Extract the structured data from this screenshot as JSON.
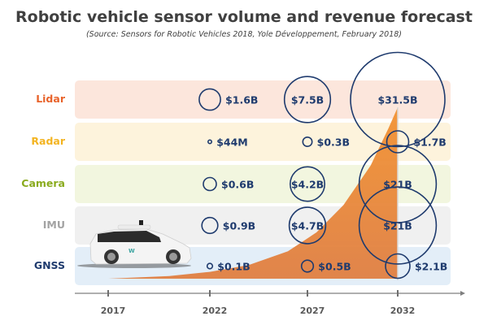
{
  "header": {
    "title": "Robotic vehicle sensor volume and revenue forecast",
    "subtitle": "(Source: Sensors for Robotic Vehicles 2018, Yole Développement, February 2018)"
  },
  "chart_data": {
    "type": "bubble-timeline",
    "title": "Robotic vehicle sensor volume and revenue forecast",
    "subtitle": "(Source: Sensors for Robotic Vehicles 2018, Yole Développement, February 2018)",
    "x_ticks": [
      "2017",
      "2022",
      "2027",
      "2032"
    ],
    "x_values": [
      2017,
      2022,
      2027,
      2032
    ],
    "xlim": [
      2015.6,
      2036.5
    ],
    "categories": [
      "Lidar",
      "Radar",
      "Camera",
      "IMU",
      "GNSS"
    ],
    "category_colors": {
      "Lidar": "#e8632b",
      "Radar": "#f3b421",
      "Camera": "#8aab1e",
      "IMU": "#a3a3a3",
      "GNSS": "#1f3b6e"
    },
    "row_backgrounds": {
      "Lidar": "#fce6dc",
      "Radar": "#fdf3dc",
      "Camera": "#f2f6df",
      "IMU": "#f0f0f0",
      "GNSS": "#e3eef8"
    },
    "series": [
      {
        "name": "Lidar",
        "values_busd": [
          1.6,
          7.5,
          31.5
        ],
        "labels": [
          "$1.6B",
          "$7.5B",
          "$31.5B"
        ],
        "years": [
          2022,
          2027,
          2032
        ]
      },
      {
        "name": "Radar",
        "values_busd": [
          0.044,
          0.3,
          1.7
        ],
        "labels": [
          "$44M",
          "$0.3B",
          "$1.7B"
        ],
        "years": [
          2022,
          2027,
          2032
        ]
      },
      {
        "name": "Camera",
        "values_busd": [
          0.6,
          4.2,
          21
        ],
        "labels": [
          "$0.6B",
          "$4.2B",
          "$21B"
        ],
        "years": [
          2022,
          2027,
          2032
        ]
      },
      {
        "name": "IMU",
        "values_busd": [
          0.9,
          4.7,
          21
        ],
        "labels": [
          "$0.9B",
          "$4.7B",
          "$21B"
        ],
        "years": [
          2022,
          2027,
          2032
        ]
      },
      {
        "name": "GNSS",
        "values_busd": [
          0.1,
          0.5,
          2.1
        ],
        "labels": [
          "$0.1B",
          "$0.5B",
          "$2.1B"
        ],
        "years": [
          2022,
          2027,
          2032
        ]
      }
    ],
    "volume_curve": {
      "description": "Robotic vehicle volume growth (orange area, relative)",
      "color": "#e8843c",
      "points": [
        {
          "year": 2017.0,
          "rel": 0.0
        },
        {
          "year": 2020.0,
          "rel": 0.015
        },
        {
          "year": 2022.0,
          "rel": 0.04
        },
        {
          "year": 2024.0,
          "rel": 0.08
        },
        {
          "year": 2026.0,
          "rel": 0.16
        },
        {
          "year": 2027.5,
          "rel": 0.27
        },
        {
          "year": 2029.0,
          "rel": 0.43
        },
        {
          "year": 2030.5,
          "rel": 0.66
        },
        {
          "year": 2031.5,
          "rel": 0.88
        },
        {
          "year": 2032.0,
          "rel": 1.0
        }
      ]
    },
    "bubble_color": "#1f3b6e",
    "label_color": "#1f3b6e",
    "grid": false,
    "legend": "none"
  },
  "image": {
    "description": "White Waymo robotic minivan",
    "logo_text": "W"
  }
}
